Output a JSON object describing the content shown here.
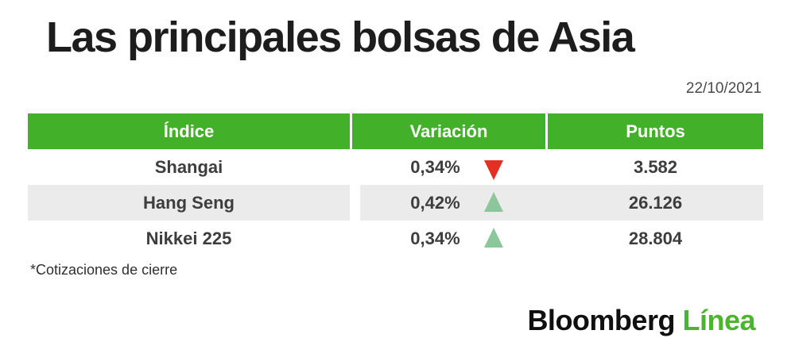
{
  "header": {
    "title": "Las principales bolsas de Asia",
    "date": "22/10/2021"
  },
  "table": {
    "columns": [
      "Índice",
      "Variación",
      "Puntos"
    ],
    "rows": [
      {
        "index": "Shangai",
        "variation": "0,34%",
        "direction": "down",
        "points": "3.582"
      },
      {
        "index": "Hang Seng",
        "variation": "0,42%",
        "direction": "up",
        "points": "26.126"
      },
      {
        "index": "Nikkei 225",
        "variation": "0,34%",
        "direction": "up",
        "points": "28.804"
      }
    ]
  },
  "footnote": "*Cotizaciones de cierre",
  "logo": {
    "black": "Bloomberg",
    "green": "Línea"
  },
  "colors": {
    "header_green": "#43b02a",
    "logo_green": "#4db52d",
    "up_triangle": "#8bc79b",
    "down_triangle": "#e52e24",
    "row_alt": "#ebebeb",
    "title_text": "#1d1d1d",
    "cell_text": "#3d3d3d"
  },
  "chart_data": {
    "type": "table",
    "title": "Las principales bolsas de Asia",
    "date": "22/10/2021",
    "columns": [
      "Índice",
      "Variación",
      "Puntos"
    ],
    "rows": [
      [
        "Shangai",
        "0,34%",
        "down",
        "3.582"
      ],
      [
        "Hang Seng",
        "0,42%",
        "up",
        "26.126"
      ],
      [
        "Nikkei 225",
        "0,34%",
        "up",
        "28.804"
      ]
    ],
    "note": "*Cotizaciones de cierre",
    "source": "Bloomberg Línea"
  }
}
